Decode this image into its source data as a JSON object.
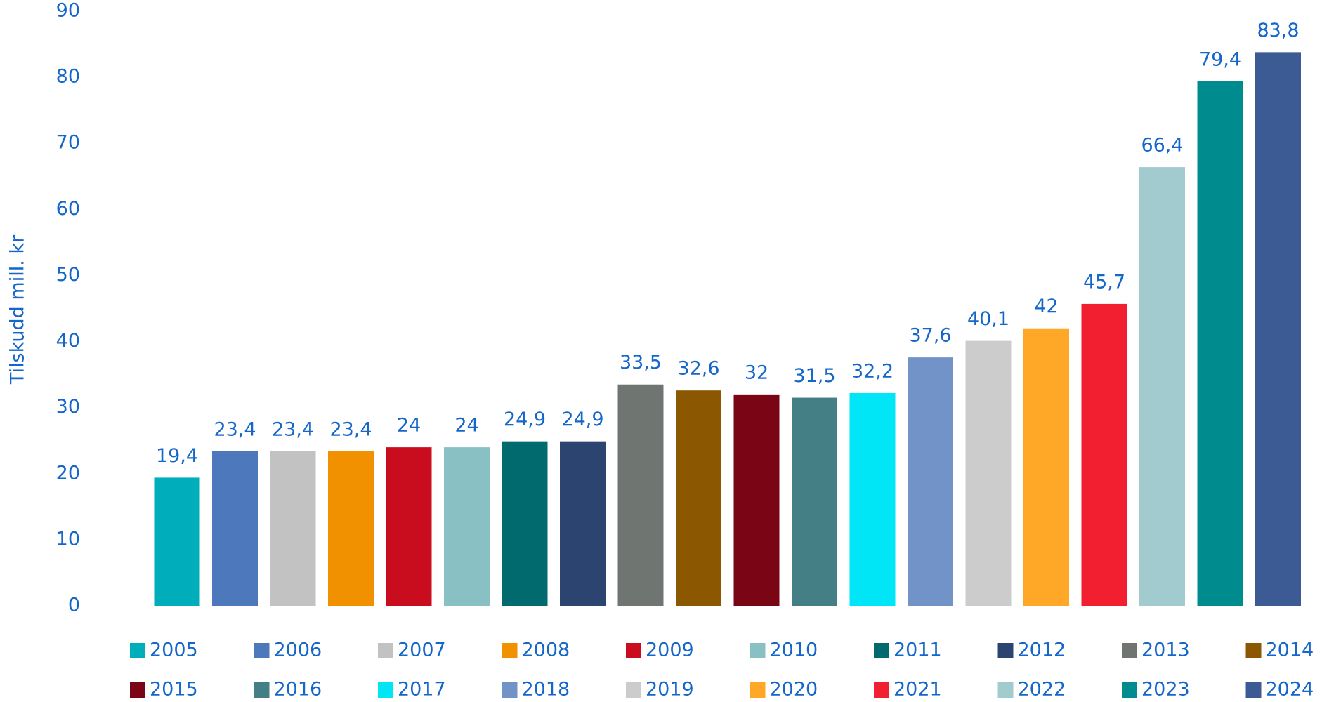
{
  "chart_data": {
    "type": "bar",
    "y_label": "Tilskudd mill. kr",
    "categories": [
      "2005",
      "2006",
      "2007",
      "2008",
      "2009",
      "2010",
      "2011",
      "2012",
      "2013",
      "2014",
      "2015",
      "2016",
      "2017",
      "2018",
      "2019",
      "2020",
      "2021",
      "2022",
      "2023",
      "2024"
    ],
    "values": [
      19.4,
      23.4,
      23.4,
      23.4,
      24,
      24,
      24.9,
      24.9,
      33.5,
      32.6,
      32,
      31.5,
      32.2,
      37.6,
      40.1,
      42,
      45.7,
      66.4,
      79.4,
      83.8
    ],
    "value_labels": [
      "19,4",
      "23,4",
      "23,4",
      "23,4",
      "24",
      "24",
      "24,9",
      "24,9",
      "33,5",
      "32,6",
      "32",
      "31,5",
      "32,2",
      "37,6",
      "40,1",
      "42",
      "45,7",
      "66,4",
      "79,4",
      "83,8"
    ],
    "colors": [
      "#00aebb",
      "#4d79bc",
      "#c2c2c2",
      "#f29100",
      "#c90c1e",
      "#88c0c4",
      "#006a6e",
      "#2c4470",
      "#6f7571",
      "#8b5700",
      "#7a0514",
      "#437f84",
      "#00e6f7",
      "#7193c7",
      "#cccccc",
      "#ffa726",
      "#f11f30",
      "#a2cbcf",
      "#008b8e",
      "#3c5b94"
    ],
    "ylim": [
      0,
      90
    ],
    "yticks": [
      0,
      10,
      20,
      30,
      40,
      50,
      60,
      70,
      80,
      90
    ],
    "legend": "bottom"
  }
}
